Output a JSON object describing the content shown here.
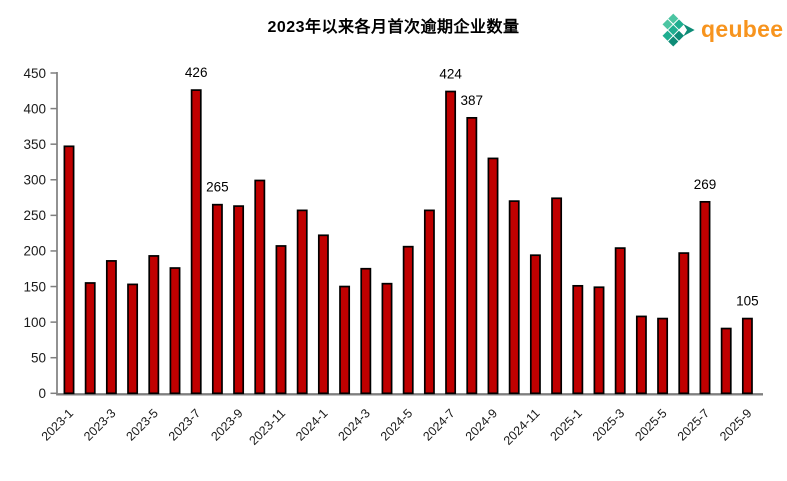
{
  "header": {
    "title": "2023年以来各月首次逾期企业数量",
    "logo_text": "qeubee",
    "logo_icon": "qeubee-cubes-icon",
    "logo_colors": {
      "text": "#F7941E",
      "light": "#4CC5A2",
      "mid": "#1FAE90",
      "dark": "#0E8C77"
    }
  },
  "chart_data": {
    "type": "bar",
    "title": "2023年以来各月首次逾期企业数量",
    "categories": [
      "2023-1",
      "2023-2",
      "2023-3",
      "2023-4",
      "2023-5",
      "2023-6",
      "2023-7",
      "2023-8",
      "2023-9",
      "2023-10",
      "2023-11",
      "2023-12",
      "2024-1",
      "2024-2",
      "2024-3",
      "2024-4",
      "2024-5",
      "2024-6",
      "2024-7",
      "2024-8",
      "2024-9",
      "2024-10",
      "2024-11",
      "2024-12",
      "2025-1",
      "2025-2",
      "2025-3",
      "2025-4",
      "2025-5",
      "2025-6",
      "2025-7",
      "2025-8",
      "2025-9"
    ],
    "values": [
      347,
      155,
      186,
      153,
      193,
      176,
      426,
      265,
      263,
      299,
      207,
      257,
      222,
      150,
      175,
      154,
      206,
      257,
      424,
      387,
      330,
      270,
      194,
      274,
      151,
      149,
      204,
      108,
      105,
      197,
      269,
      91,
      105
    ],
    "data_labels": [
      {
        "category": "2023-7",
        "value": 426
      },
      {
        "category": "2023-8",
        "value": 265
      },
      {
        "category": "2024-7",
        "value": 424
      },
      {
        "category": "2024-8",
        "value": 387
      },
      {
        "category": "2025-7",
        "value": 269
      },
      {
        "category": "2025-9",
        "value": 105
      }
    ],
    "x_tick_labels": [
      "2023-1",
      "2023-3",
      "2023-5",
      "2023-7",
      "2023-9",
      "2023-11",
      "2024-1",
      "2024-3",
      "2024-5",
      "2024-7",
      "2024-9",
      "2024-11",
      "2025-1",
      "2025-3",
      "2025-5",
      "2025-7",
      "2025-9"
    ],
    "xlabel": "",
    "ylabel": "",
    "ylim": [
      0,
      450
    ],
    "y_ticks": [
      0,
      50,
      100,
      150,
      200,
      250,
      300,
      350,
      400,
      450
    ],
    "grid": false,
    "legend": false,
    "bar_color": "#C00000",
    "bar_border_color": "#000000",
    "axis_color": "#7F7F7F",
    "tick_label_color": "#1A1A1A",
    "value_label_color": "#000000"
  }
}
